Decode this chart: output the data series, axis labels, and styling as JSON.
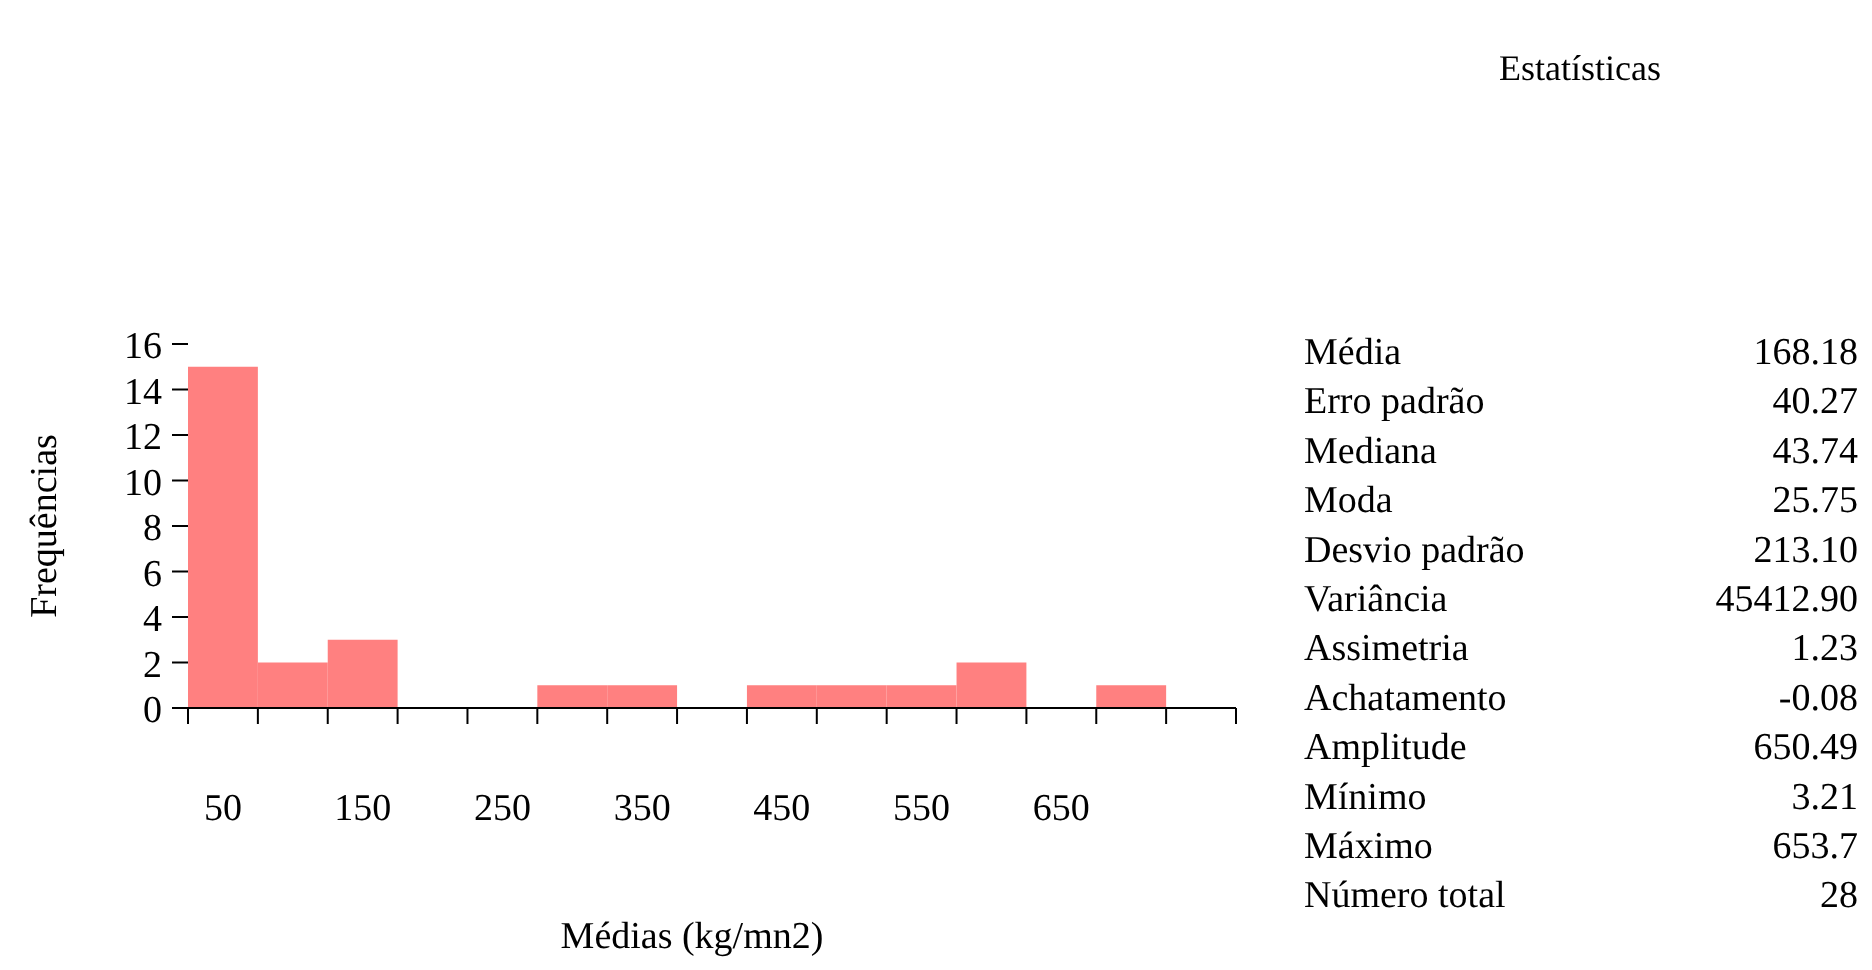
{
  "chart_data": [
    {
      "type": "bar",
      "xlabel": "Médias (kg/mn2)",
      "ylabel": "Frequências",
      "color": "#ff8080",
      "categories": [
        "50",
        null,
        "150",
        null,
        "250",
        null,
        "350",
        null,
        "450",
        null,
        "550",
        null,
        "650",
        null,
        null
      ],
      "values": [
        15,
        2,
        3,
        0,
        0,
        1,
        1,
        0,
        1,
        1,
        1,
        2,
        0,
        1,
        0
      ],
      "ylim": [
        0,
        16
      ],
      "yticks": [
        0,
        2,
        4,
        6,
        8,
        10,
        12,
        14,
        16
      ]
    },
    {
      "type": "other",
      "title": "Estatísticas",
      "categories": [
        "Média",
        "Erro padrão",
        "Mediana",
        "Moda",
        "Desvio padrão",
        "Variância",
        "Assimetria",
        "Achatamento",
        "Amplitude",
        "Mínimo",
        "Máximo",
        "Número total"
      ],
      "value_labels": [
        "168.18",
        "40.27",
        "43.74",
        "25.75",
        "213.10",
        "45412.90",
        "1.23",
        "-0.08",
        "650.49",
        "3.21",
        "653.7",
        "28"
      ]
    }
  ]
}
